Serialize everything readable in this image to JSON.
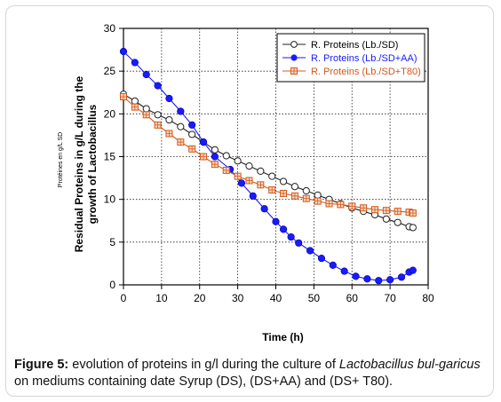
{
  "chart_data": {
    "type": "line",
    "xlabel": "Time (h)",
    "ylabel_line1": "Residual Proteins in g/L during the",
    "ylabel_line2": "growth of Lactobacillus",
    "ylabel_small": "Protéines en g/L SD",
    "xlim": [
      0,
      80
    ],
    "ylim": [
      0,
      30
    ],
    "xticks": [
      0,
      10,
      20,
      30,
      40,
      50,
      60,
      70,
      80
    ],
    "yticks": [
      0,
      5,
      10,
      15,
      20,
      25,
      30
    ],
    "grid": true,
    "legend_position": "top-right",
    "series": [
      {
        "name": "R. Proteins (Lb./SD)",
        "color": "#222222",
        "marker": "open-circle",
        "x": [
          0,
          3,
          6,
          9,
          12,
          15,
          18,
          21,
          24,
          27,
          30,
          33,
          36,
          39,
          42,
          45,
          48,
          51,
          54,
          57,
          60,
          63,
          66,
          69,
          72,
          75,
          76
        ],
        "y": [
          22.3,
          21.5,
          20.6,
          19.9,
          19.3,
          18.5,
          17.6,
          16.7,
          15.8,
          15.1,
          14.5,
          13.9,
          13.3,
          12.7,
          12.1,
          11.5,
          11.0,
          10.5,
          10.0,
          9.5,
          9.0,
          8.6,
          8.2,
          7.7,
          7.3,
          6.8,
          6.7
        ]
      },
      {
        "name": "R. Proteins (Lb./SD+AA)",
        "color": "#1a1aff",
        "marker": "filled-circle",
        "x": [
          0,
          3,
          6,
          9,
          12,
          15,
          18,
          21,
          24,
          28,
          31,
          34,
          37,
          40,
          42,
          44,
          46,
          49,
          52,
          55,
          58,
          61,
          64,
          67,
          70,
          73,
          75,
          76
        ],
        "y": [
          27.3,
          26.0,
          24.6,
          23.3,
          21.8,
          20.3,
          18.7,
          16.7,
          15.0,
          13.5,
          11.9,
          10.4,
          8.9,
          7.4,
          6.5,
          5.6,
          4.9,
          4.0,
          3.1,
          2.3,
          1.6,
          1.0,
          0.7,
          0.5,
          0.6,
          0.9,
          1.5,
          1.7
        ]
      },
      {
        "name": "R. Proteins (Lb./SD+T80)",
        "color": "#d4581a",
        "marker": "square",
        "x": [
          0,
          3,
          6,
          9,
          12,
          15,
          18,
          21,
          24,
          27,
          30,
          33,
          36,
          39,
          42,
          45,
          48,
          51,
          54,
          57,
          60,
          63,
          66,
          69,
          72,
          75,
          76
        ],
        "y": [
          22.0,
          20.8,
          19.9,
          18.7,
          17.7,
          16.7,
          15.9,
          15.0,
          14.1,
          13.4,
          12.7,
          12.2,
          11.7,
          11.1,
          10.7,
          10.4,
          10.1,
          9.8,
          9.5,
          9.4,
          9.2,
          9.0,
          8.8,
          8.7,
          8.6,
          8.5,
          8.4
        ]
      }
    ]
  },
  "caption": {
    "label": "Figure 5:",
    "text1": " evolution of proteins in g/l during the culture of ",
    "species": "Lactobacillus bul-garicus",
    "text2": " on mediums containing date Syrup (DS), (DS+AA) and (DS+ T80)."
  }
}
